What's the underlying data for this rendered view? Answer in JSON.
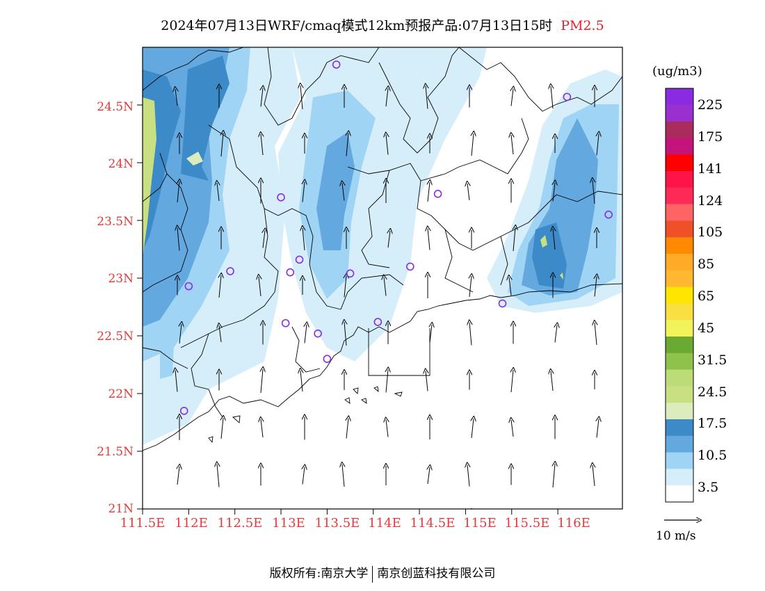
{
  "title": {
    "text": "2024年07月13日WRF/cmaq模式12km预报产品:07月13日15时",
    "pollutant": "PM2.5"
  },
  "axes": {
    "latitude_labels": [
      "24.5N",
      "24N",
      "23.5N",
      "23N",
      "22.5N",
      "22N",
      "21.5N",
      "21N"
    ],
    "longitude_labels": [
      "111.5E",
      "112E",
      "112.5E",
      "113E",
      "113.5E",
      "114E",
      "114.5E",
      "115E",
      "115.5E",
      "116E"
    ]
  },
  "legend": {
    "unit": "(ug/m3)",
    "labels": [
      "225",
      "175",
      "141",
      "124",
      "105",
      "85",
      "65",
      "45",
      "31.5",
      "24.5",
      "17.5",
      "10.5",
      "3.5"
    ],
    "colors": [
      "#8a2be2",
      "#9b30d0",
      "#aa2c5c",
      "#c4147c",
      "#ff0000",
      "#ff1449",
      "#ff2a55",
      "#ff6464",
      "#f05028",
      "#ff8a00",
      "#ffab28",
      "#ffb830",
      "#ffe600",
      "#f7e040",
      "#f2f25a",
      "#6aaa32",
      "#8ec24a",
      "#bcdc78",
      "#c8e082",
      "#dcecbc",
      "#3c8ac8",
      "#64a8e0",
      "#a0d4f4",
      "#d6eefa",
      "#ffffff"
    ],
    "wind_label": "10 m/s"
  },
  "footer": {
    "copyright": "版权所有:南京大学",
    "company": "南京创蓝科技有限公司"
  },
  "map_data": {
    "extent": {
      "lon": [
        111.5,
        116.7
      ],
      "lat": [
        21.0,
        25.0
      ]
    },
    "stations": [
      [
        113.6,
        24.85
      ],
      [
        116.1,
        24.57
      ],
      [
        113.0,
        23.7
      ],
      [
        114.7,
        23.73
      ],
      [
        116.55,
        23.55
      ],
      [
        113.2,
        23.16
      ],
      [
        112.45,
        23.06
      ],
      [
        113.1,
        23.05
      ],
      [
        113.75,
        23.04
      ],
      [
        114.4,
        23.1
      ],
      [
        112.0,
        22.93
      ],
      [
        115.4,
        22.78
      ],
      [
        113.05,
        22.61
      ],
      [
        113.4,
        22.52
      ],
      [
        114.05,
        22.62
      ],
      [
        113.5,
        22.3
      ],
      [
        111.95,
        21.85
      ]
    ]
  }
}
